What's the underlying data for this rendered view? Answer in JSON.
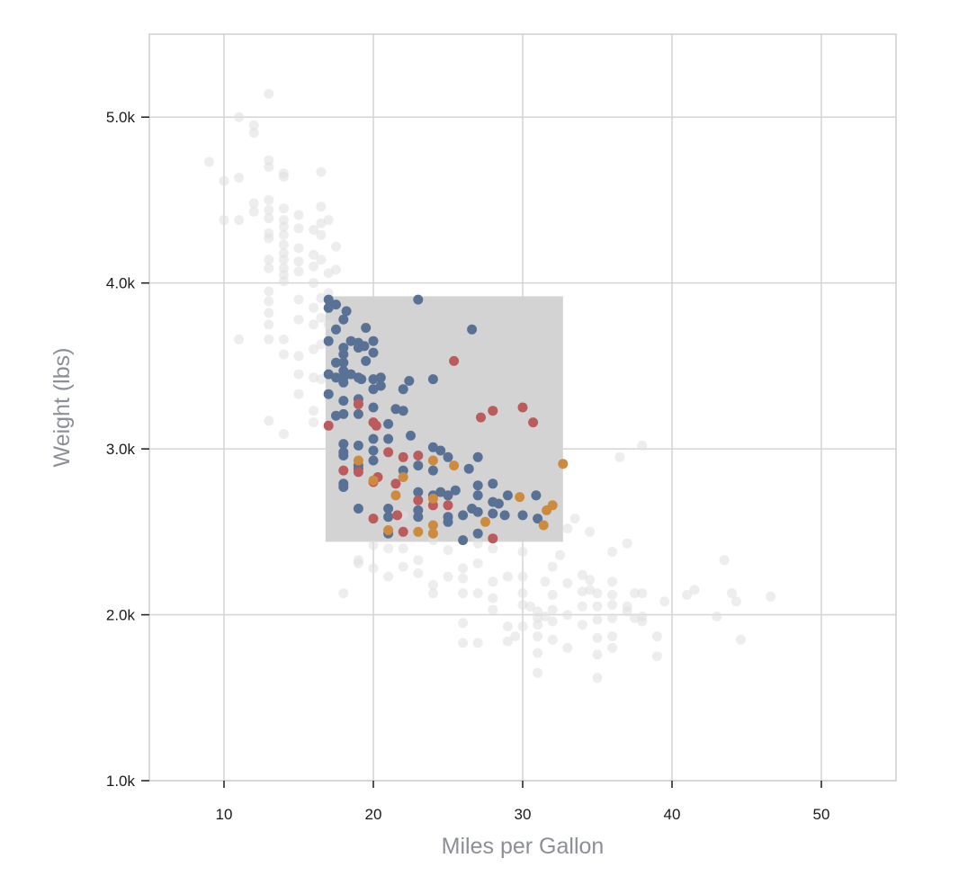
{
  "chart_data": {
    "type": "scatter",
    "title": "",
    "xlabel": "Miles per Gallon",
    "ylabel": "Weight (lbs)",
    "xlim": [
      5,
      55
    ],
    "ylim": [
      1000,
      5500
    ],
    "xticks": [
      10,
      20,
      30,
      40,
      50
    ],
    "yticks": [
      1000,
      2000,
      3000,
      4000,
      5000
    ],
    "ytick_labels": [
      "1.0k",
      "2.0k",
      "3.0k",
      "4.0k",
      "5.0k"
    ],
    "grid": true,
    "legend": "none",
    "brush": {
      "x": [
        16.8,
        32.7
      ],
      "y": [
        2440,
        3920
      ]
    },
    "colors": {
      "unselected": "#dedede",
      "USA": "#5a7196",
      "Europe": "#bc5b5e",
      "Japan": "#cd8b3f",
      "brush": "#d3d3d3"
    },
    "series": [
      {
        "key": "unselected",
        "points": [
          [
            9,
            4730
          ],
          [
            10,
            4615
          ],
          [
            10,
            4380
          ],
          [
            11,
            5000
          ],
          [
            11,
            4635
          ],
          [
            11,
            4380
          ],
          [
            11,
            3660
          ],
          [
            12,
            4950
          ],
          [
            12,
            4905
          ],
          [
            12,
            4480
          ],
          [
            12,
            4430
          ],
          [
            13,
            5140
          ],
          [
            13,
            4740
          ],
          [
            13,
            4700
          ],
          [
            13,
            4500
          ],
          [
            13,
            4440
          ],
          [
            13,
            4390
          ],
          [
            13,
            4300
          ],
          [
            13,
            4270
          ],
          [
            13,
            4140
          ],
          [
            13,
            4090
          ],
          [
            13,
            3950
          ],
          [
            13,
            3890
          ],
          [
            13,
            3820
          ],
          [
            13,
            3750
          ],
          [
            13,
            3660
          ],
          [
            13,
            3170
          ],
          [
            14,
            4660
          ],
          [
            14,
            4640
          ],
          [
            14,
            4450
          ],
          [
            14,
            4380
          ],
          [
            14,
            4340
          ],
          [
            14,
            4290
          ],
          [
            14,
            4230
          ],
          [
            14,
            4180
          ],
          [
            14,
            4140
          ],
          [
            14,
            4090
          ],
          [
            14,
            4050
          ],
          [
            14,
            4010
          ],
          [
            14,
            3660
          ],
          [
            14,
            3570
          ],
          [
            14,
            3090
          ],
          [
            15,
            4410
          ],
          [
            15,
            4330
          ],
          [
            15,
            4210
          ],
          [
            15,
            4130
          ],
          [
            15,
            4070
          ],
          [
            15,
            3900
          ],
          [
            15,
            3780
          ],
          [
            15,
            3560
          ],
          [
            15,
            3450
          ],
          [
            15,
            3330
          ],
          [
            16,
            4320
          ],
          [
            16,
            4170
          ],
          [
            16,
            4100
          ],
          [
            16,
            4000
          ],
          [
            16,
            3850
          ],
          [
            16,
            3750
          ],
          [
            16,
            3600
          ],
          [
            16,
            3430
          ],
          [
            16,
            3230
          ],
          [
            16,
            3160
          ],
          [
            16.5,
            4670
          ],
          [
            16.5,
            4460
          ],
          [
            16.5,
            4360
          ],
          [
            16.5,
            4290
          ],
          [
            16.5,
            4140
          ],
          [
            16.5,
            3910
          ],
          [
            16.5,
            3790
          ],
          [
            16.5,
            3630
          ],
          [
            16.5,
            3420
          ],
          [
            17,
            4380
          ],
          [
            17,
            4060
          ],
          [
            17,
            3940
          ],
          [
            17,
            3750
          ],
          [
            17.5,
            4220
          ],
          [
            17.5,
            4080
          ],
          [
            18,
            2130
          ],
          [
            19,
            2330
          ],
          [
            19,
            2310
          ],
          [
            20,
            2420
          ],
          [
            20,
            2280
          ],
          [
            21,
            2590
          ],
          [
            21,
            2400
          ],
          [
            21,
            2230
          ],
          [
            22,
            2600
          ],
          [
            22,
            2400
          ],
          [
            22,
            2290
          ],
          [
            23,
            2250
          ],
          [
            23,
            2330
          ],
          [
            24,
            2450
          ],
          [
            24,
            2180
          ],
          [
            24,
            2130
          ],
          [
            25,
            2230
          ],
          [
            25,
            2390
          ],
          [
            26,
            2280
          ],
          [
            26,
            2220
          ],
          [
            26,
            2130
          ],
          [
            26,
            1950
          ],
          [
            26,
            1830
          ],
          [
            27,
            2430
          ],
          [
            27,
            2310
          ],
          [
            27,
            2130
          ],
          [
            27,
            1830
          ],
          [
            28,
            2400
          ],
          [
            28,
            2200
          ],
          [
            28,
            2100
          ],
          [
            28,
            2030
          ],
          [
            29,
            1930
          ],
          [
            29,
            2230
          ],
          [
            29,
            1840
          ],
          [
            29.5,
            1870
          ],
          [
            30,
            2380
          ],
          [
            30,
            2230
          ],
          [
            30,
            2130
          ],
          [
            30,
            2060
          ],
          [
            30,
            1930
          ],
          [
            30.5,
            2050
          ],
          [
            31,
            2020
          ],
          [
            31,
            1980
          ],
          [
            31,
            1940
          ],
          [
            31,
            1870
          ],
          [
            31,
            1770
          ],
          [
            31,
            1650
          ],
          [
            31.5,
            2200
          ],
          [
            31.5,
            1990
          ],
          [
            32,
            2290
          ],
          [
            32,
            2120
          ],
          [
            32,
            2030
          ],
          [
            32,
            1960
          ],
          [
            32,
            1850
          ],
          [
            32.5,
            2360
          ],
          [
            33,
            2520
          ],
          [
            33,
            2190
          ],
          [
            33,
            2000
          ],
          [
            33,
            1800
          ],
          [
            33.5,
            2580
          ],
          [
            34,
            2240
          ],
          [
            34,
            2140
          ],
          [
            34,
            2050
          ],
          [
            34,
            1940
          ],
          [
            34.5,
            2500
          ],
          [
            34.5,
            2210
          ],
          [
            34.5,
            2150
          ],
          [
            35,
            2130
          ],
          [
            35,
            2050
          ],
          [
            35,
            1970
          ],
          [
            35,
            1860
          ],
          [
            35,
            1760
          ],
          [
            35,
            1620
          ],
          [
            36,
            2380
          ],
          [
            36,
            2200
          ],
          [
            36,
            2120
          ],
          [
            36,
            2060
          ],
          [
            36,
            1980
          ],
          [
            36,
            1870
          ],
          [
            36,
            1800
          ],
          [
            36.5,
            2950
          ],
          [
            37,
            2430
          ],
          [
            37,
            2050
          ],
          [
            37,
            2020
          ],
          [
            37.5,
            2130
          ],
          [
            37.5,
            1980
          ],
          [
            38,
            3020
          ],
          [
            38,
            2130
          ],
          [
            38,
            1990
          ],
          [
            38,
            1960
          ],
          [
            39,
            1870
          ],
          [
            39,
            1750
          ],
          [
            39.5,
            2080
          ],
          [
            41,
            2120
          ],
          [
            41.5,
            2150
          ],
          [
            43,
            1990
          ],
          [
            43.5,
            2330
          ],
          [
            44,
            2130
          ],
          [
            44.3,
            2080
          ],
          [
            44.6,
            1850
          ],
          [
            46.6,
            2110
          ]
        ]
      },
      {
        "key": "USA",
        "points": [
          [
            17,
            3900
          ],
          [
            17,
            3850
          ],
          [
            17,
            3650
          ],
          [
            17,
            3450
          ],
          [
            17,
            3330
          ],
          [
            17.5,
            3870
          ],
          [
            17.5,
            3720
          ],
          [
            17.5,
            3520
          ],
          [
            17.5,
            3430
          ],
          [
            17.5,
            3200
          ],
          [
            18,
            3780
          ],
          [
            18,
            3610
          ],
          [
            18,
            3570
          ],
          [
            18,
            3520
          ],
          [
            18,
            3470
          ],
          [
            18,
            3430
          ],
          [
            18,
            3400
          ],
          [
            18,
            3290
          ],
          [
            18,
            3210
          ],
          [
            18,
            3030
          ],
          [
            18,
            2980
          ],
          [
            18,
            2960
          ],
          [
            18,
            2790
          ],
          [
            18,
            2770
          ],
          [
            18.2,
            3830
          ],
          [
            18.5,
            3650
          ],
          [
            18.5,
            3450
          ],
          [
            19,
            3640
          ],
          [
            19,
            3610
          ],
          [
            19,
            3430
          ],
          [
            19,
            3300
          ],
          [
            19,
            3270
          ],
          [
            19,
            3210
          ],
          [
            19,
            3020
          ],
          [
            19,
            2900
          ],
          [
            19,
            2880
          ],
          [
            19,
            2640
          ],
          [
            19.2,
            3420
          ],
          [
            19.4,
            3620
          ],
          [
            19.5,
            3530
          ],
          [
            19.5,
            3730
          ],
          [
            20,
            3650
          ],
          [
            20,
            3580
          ],
          [
            20,
            3420
          ],
          [
            20,
            3360
          ],
          [
            20,
            3250
          ],
          [
            20,
            3060
          ],
          [
            20,
            2990
          ],
          [
            20,
            2930
          ],
          [
            20.5,
            3430
          ],
          [
            20.5,
            3380
          ],
          [
            21,
            3150
          ],
          [
            21,
            3060
          ],
          [
            21,
            2640
          ],
          [
            21,
            2590
          ],
          [
            21,
            2490
          ],
          [
            21.5,
            3240
          ],
          [
            22,
            3360
          ],
          [
            22,
            3230
          ],
          [
            22,
            2870
          ],
          [
            22.4,
            3410
          ],
          [
            22.5,
            3080
          ],
          [
            23,
            3900
          ],
          [
            23,
            2900
          ],
          [
            23,
            2740
          ],
          [
            23,
            2630
          ],
          [
            23,
            2590
          ],
          [
            24,
            3420
          ],
          [
            24,
            3010
          ],
          [
            24,
            2870
          ],
          [
            24,
            2720
          ],
          [
            24.5,
            2990
          ],
          [
            24.5,
            2740
          ],
          [
            25,
            2950
          ],
          [
            25,
            2720
          ],
          [
            25,
            2590
          ],
          [
            25,
            2560
          ],
          [
            25.5,
            2750
          ],
          [
            26,
            2600
          ],
          [
            26,
            2450
          ],
          [
            26.4,
            2880
          ],
          [
            26.6,
            3720
          ],
          [
            26.6,
            2640
          ],
          [
            27,
            2950
          ],
          [
            27,
            2780
          ],
          [
            27,
            2720
          ],
          [
            27,
            2620
          ],
          [
            27,
            2490
          ],
          [
            28,
            2790
          ],
          [
            28,
            2680
          ],
          [
            28,
            2610
          ],
          [
            28.4,
            2670
          ],
          [
            28.8,
            2600
          ],
          [
            29,
            2720
          ],
          [
            30,
            2600
          ],
          [
            30.9,
            2720
          ],
          [
            31,
            2580
          ]
        ]
      },
      {
        "key": "Europe",
        "points": [
          [
            17,
            3140
          ],
          [
            18,
            2870
          ],
          [
            19,
            3270
          ],
          [
            19,
            2860
          ],
          [
            20,
            3160
          ],
          [
            20,
            2800
          ],
          [
            20,
            2580
          ],
          [
            20.2,
            3140
          ],
          [
            20.3,
            2830
          ],
          [
            21,
            2980
          ],
          [
            21.5,
            2790
          ],
          [
            21.6,
            2600
          ],
          [
            22,
            2950
          ],
          [
            22,
            2500
          ],
          [
            23,
            2960
          ],
          [
            23,
            2690
          ],
          [
            24,
            2660
          ],
          [
            25,
            2660
          ],
          [
            25.4,
            3530
          ],
          [
            27.2,
            3190
          ],
          [
            28,
            3230
          ],
          [
            28,
            2460
          ],
          [
            30,
            3250
          ],
          [
            30.7,
            3160
          ]
        ]
      },
      {
        "key": "Japan",
        "points": [
          [
            19,
            2930
          ],
          [
            20,
            2810
          ],
          [
            21,
            2510
          ],
          [
            21.5,
            2720
          ],
          [
            22,
            2830
          ],
          [
            23,
            2500
          ],
          [
            24,
            2930
          ],
          [
            24,
            2700
          ],
          [
            24,
            2540
          ],
          [
            24,
            2490
          ],
          [
            25.4,
            2900
          ],
          [
            27.5,
            2560
          ],
          [
            29.8,
            2710
          ],
          [
            31.4,
            2540
          ],
          [
            31.6,
            2630
          ],
          [
            32,
            2660
          ],
          [
            32.7,
            2910
          ]
        ]
      }
    ]
  }
}
